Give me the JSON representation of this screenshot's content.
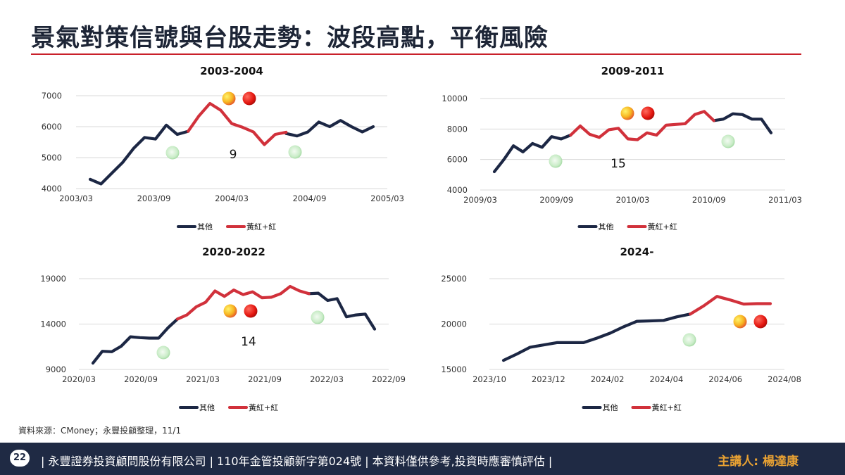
{
  "title": "景氣對策信號與台股走勢：波段高點，平衡風險",
  "source": "資料來源：CMoney；永豐投顧整理，11/1",
  "footer": {
    "page_number": "22",
    "text": "| 永豐證券投資顧問股份有限公司 | 110年金管投顧新字第024號 | 本資料僅供參考,投資時應審慎評估 |",
    "speaker": "主講人: 楊達康"
  },
  "colors": {
    "other": "#1c2744",
    "red_signal": "#d1313b",
    "title_rule": "#c9202a",
    "footer_bg": "#1f2a44",
    "speaker_text": "#e9a233"
  },
  "chart_data": [
    {
      "type": "line",
      "title": "2003-2004",
      "x_labels": [
        "2003/03",
        "2003/09",
        "2004/03",
        "2004/09",
        "2005/03"
      ],
      "ylim": [
        4000,
        7000
      ],
      "yticks": [
        4000,
        5000,
        6000,
        7000
      ],
      "series": [
        {
          "name": "其他",
          "color": "#1c2744",
          "segments": [
            [
              4300,
              4150,
              4500,
              4850,
              5300,
              5650,
              5600,
              6050,
              5750,
              5850
            ],
            [
              5780,
              5700,
              5830,
              6150,
              6000,
              6200,
              6000,
              5830,
              6000
            ]
          ]
        },
        {
          "name": "黃紅+紅",
          "color": "#d1313b",
          "segments": [
            [
              5850,
              6350,
              6750,
              6530,
              6100,
              5980,
              5830,
              5420,
              5750,
              5820
            ]
          ]
        }
      ],
      "segment_starts": [
        0,
        18,
        9
      ],
      "annotation": "9",
      "legend": "bottom"
    },
    {
      "type": "line",
      "title": "2009-2011",
      "x_labels": [
        "2009/03",
        "2009/09",
        "2010/03",
        "2010/09",
        "2011/03"
      ],
      "ylim": [
        4000,
        10000
      ],
      "yticks": [
        4000,
        6000,
        8000,
        10000
      ],
      "series": [
        {
          "name": "其他",
          "color": "#1c2744",
          "segments": [
            [
              5200,
              6000,
              6900,
              6500,
              7050,
              6800,
              7500,
              7350,
              7600
            ],
            [
              8550,
              8650,
              9000,
              8950,
              8650,
              8650,
              7750
            ]
          ]
        },
        {
          "name": "黃紅+紅",
          "color": "#d1313b",
          "segments": [
            [
              7600,
              8200,
              7650,
              7450,
              7950,
              8050,
              7350,
              7300,
              7750,
              7600,
              8250,
              8300,
              8350,
              8950,
              9150,
              8550
            ]
          ]
        }
      ],
      "segment_starts": [
        0,
        23,
        8
      ],
      "annotation": "15",
      "legend": "bottom"
    },
    {
      "type": "line",
      "title": "2020-2022",
      "x_labels": [
        "2020/03",
        "2020/09",
        "2021/03",
        "2021/09",
        "2022/03",
        "2022/09"
      ],
      "ylim": [
        9000,
        19000
      ],
      "yticks": [
        9000,
        14000,
        19000
      ],
      "series": [
        {
          "name": "其他",
          "color": "#1c2744",
          "segments": [
            [
              9700,
              11000,
              10950,
              11550,
              12600,
              12500,
              12450,
              12450,
              13600,
              14550
            ],
            [
              17350,
              17400,
              16600,
              16800,
              14800,
              15000,
              15100,
              13450
            ]
          ]
        },
        {
          "name": "黃紅+紅",
          "color": "#d1313b",
          "segments": [
            [
              14550,
              15000,
              15900,
              16400,
              17650,
              17050,
              17750,
              17250,
              17550,
              16900,
              16950,
              17350,
              18150,
              17650,
              17350
            ]
          ]
        }
      ],
      "segment_starts": [
        0,
        23,
        9
      ],
      "annotation": "14",
      "legend": "bottom"
    },
    {
      "type": "line",
      "title": "2024-",
      "x_labels": [
        "2023/10",
        "2023/12",
        "2024/02",
        "2024/04",
        "2024/06",
        "2024/08"
      ],
      "ylim": [
        15000,
        25000
      ],
      "yticks": [
        15000,
        20000,
        25000
      ],
      "series": [
        {
          "name": "其他",
          "color": "#1c2744",
          "segments": [
            [
              16000,
              16700,
              17450,
              17700,
              17950,
              17950,
              17950,
              18450,
              19000,
              19700,
              20300,
              20350,
              20400,
              20800,
              21100
            ]
          ]
        },
        {
          "name": "黃紅+紅",
          "color": "#d1313b",
          "segments": [
            [
              21100,
              22000,
              23050,
              22650,
              22200,
              22250,
              22250
            ]
          ]
        }
      ],
      "segment_starts": [
        0,
        14
      ],
      "annotation": "",
      "legend": "bottom"
    }
  ]
}
